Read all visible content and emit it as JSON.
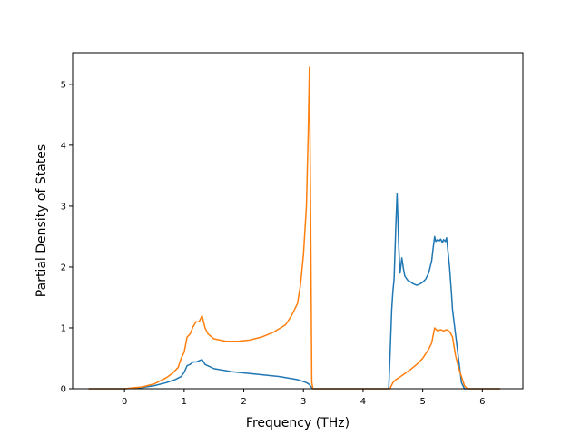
{
  "chart_data": {
    "type": "line",
    "title": "",
    "xlabel": "Frequency (THz)",
    "ylabel": "Partial Density of States",
    "xlim": [
      -0.87,
      6.68
    ],
    "ylim": [
      0,
      5.52
    ],
    "xticks": [
      0,
      1,
      2,
      3,
      4,
      5,
      6
    ],
    "yticks": [
      0,
      1,
      2,
      3,
      4,
      5
    ],
    "grid": false,
    "legend": "none",
    "series": [
      {
        "color": "#1f77b4",
        "x": [
          -0.6,
          0.0,
          0.3,
          0.5,
          0.7,
          0.85,
          0.95,
          1.0,
          1.05,
          1.1,
          1.15,
          1.2,
          1.25,
          1.3,
          1.35,
          1.5,
          1.8,
          2.2,
          2.6,
          2.9,
          3.05,
          3.1,
          3.15,
          3.3,
          4.0,
          4.43,
          4.45,
          4.48,
          4.5,
          4.52,
          4.55,
          4.57,
          4.6,
          4.62,
          4.65,
          4.68,
          4.7,
          4.75,
          4.8,
          4.85,
          4.9,
          4.95,
          5.0,
          5.05,
          5.1,
          5.15,
          5.18,
          5.2,
          5.22,
          5.25,
          5.28,
          5.3,
          5.33,
          5.35,
          5.38,
          5.4,
          5.43,
          5.45,
          5.48,
          5.5,
          5.55,
          5.6,
          5.65,
          5.7,
          5.72,
          5.8,
          6.0,
          6.3
        ],
        "y": [
          0,
          0,
          0.02,
          0.05,
          0.1,
          0.15,
          0.2,
          0.27,
          0.38,
          0.4,
          0.44,
          0.44,
          0.46,
          0.48,
          0.4,
          0.33,
          0.28,
          0.24,
          0.2,
          0.15,
          0.1,
          0.07,
          0,
          0,
          0,
          0,
          0.5,
          1.3,
          1.6,
          1.8,
          2.7,
          3.2,
          2.3,
          1.9,
          2.15,
          1.95,
          1.85,
          1.78,
          1.75,
          1.72,
          1.7,
          1.72,
          1.75,
          1.8,
          1.9,
          2.1,
          2.35,
          2.5,
          2.42,
          2.45,
          2.43,
          2.46,
          2.4,
          2.45,
          2.42,
          2.48,
          2.2,
          2.0,
          1.6,
          1.3,
          0.9,
          0.5,
          0.1,
          0,
          0,
          0,
          0,
          0
        ]
      },
      {
        "color": "#ff7f0e",
        "x": [
          -0.6,
          0.0,
          0.3,
          0.5,
          0.7,
          0.8,
          0.9,
          0.95,
          1.0,
          1.05,
          1.1,
          1.15,
          1.2,
          1.25,
          1.3,
          1.35,
          1.4,
          1.5,
          1.7,
          1.9,
          2.1,
          2.3,
          2.5,
          2.7,
          2.8,
          2.9,
          2.95,
          3.0,
          3.05,
          3.08,
          3.1,
          3.12,
          3.14,
          3.16,
          3.3,
          4.0,
          4.45,
          4.5,
          4.55,
          4.6,
          4.7,
          4.8,
          4.9,
          5.0,
          5.1,
          5.15,
          5.2,
          5.25,
          5.3,
          5.35,
          5.4,
          5.45,
          5.5,
          5.55,
          5.6,
          5.65,
          5.7,
          5.75,
          5.8,
          6.0,
          6.3
        ],
        "y": [
          0,
          0,
          0.03,
          0.08,
          0.18,
          0.25,
          0.35,
          0.5,
          0.6,
          0.85,
          0.9,
          1.02,
          1.1,
          1.1,
          1.2,
          1.0,
          0.9,
          0.82,
          0.78,
          0.78,
          0.8,
          0.85,
          0.93,
          1.05,
          1.2,
          1.4,
          1.7,
          2.2,
          3.0,
          4.2,
          5.28,
          3.0,
          0.1,
          0,
          0,
          0,
          0,
          0.1,
          0.15,
          0.18,
          0.25,
          0.32,
          0.4,
          0.5,
          0.65,
          0.75,
          1.0,
          0.95,
          0.97,
          0.95,
          0.97,
          0.94,
          0.85,
          0.55,
          0.35,
          0.2,
          0.05,
          0,
          0,
          0,
          0
        ]
      }
    ]
  }
}
